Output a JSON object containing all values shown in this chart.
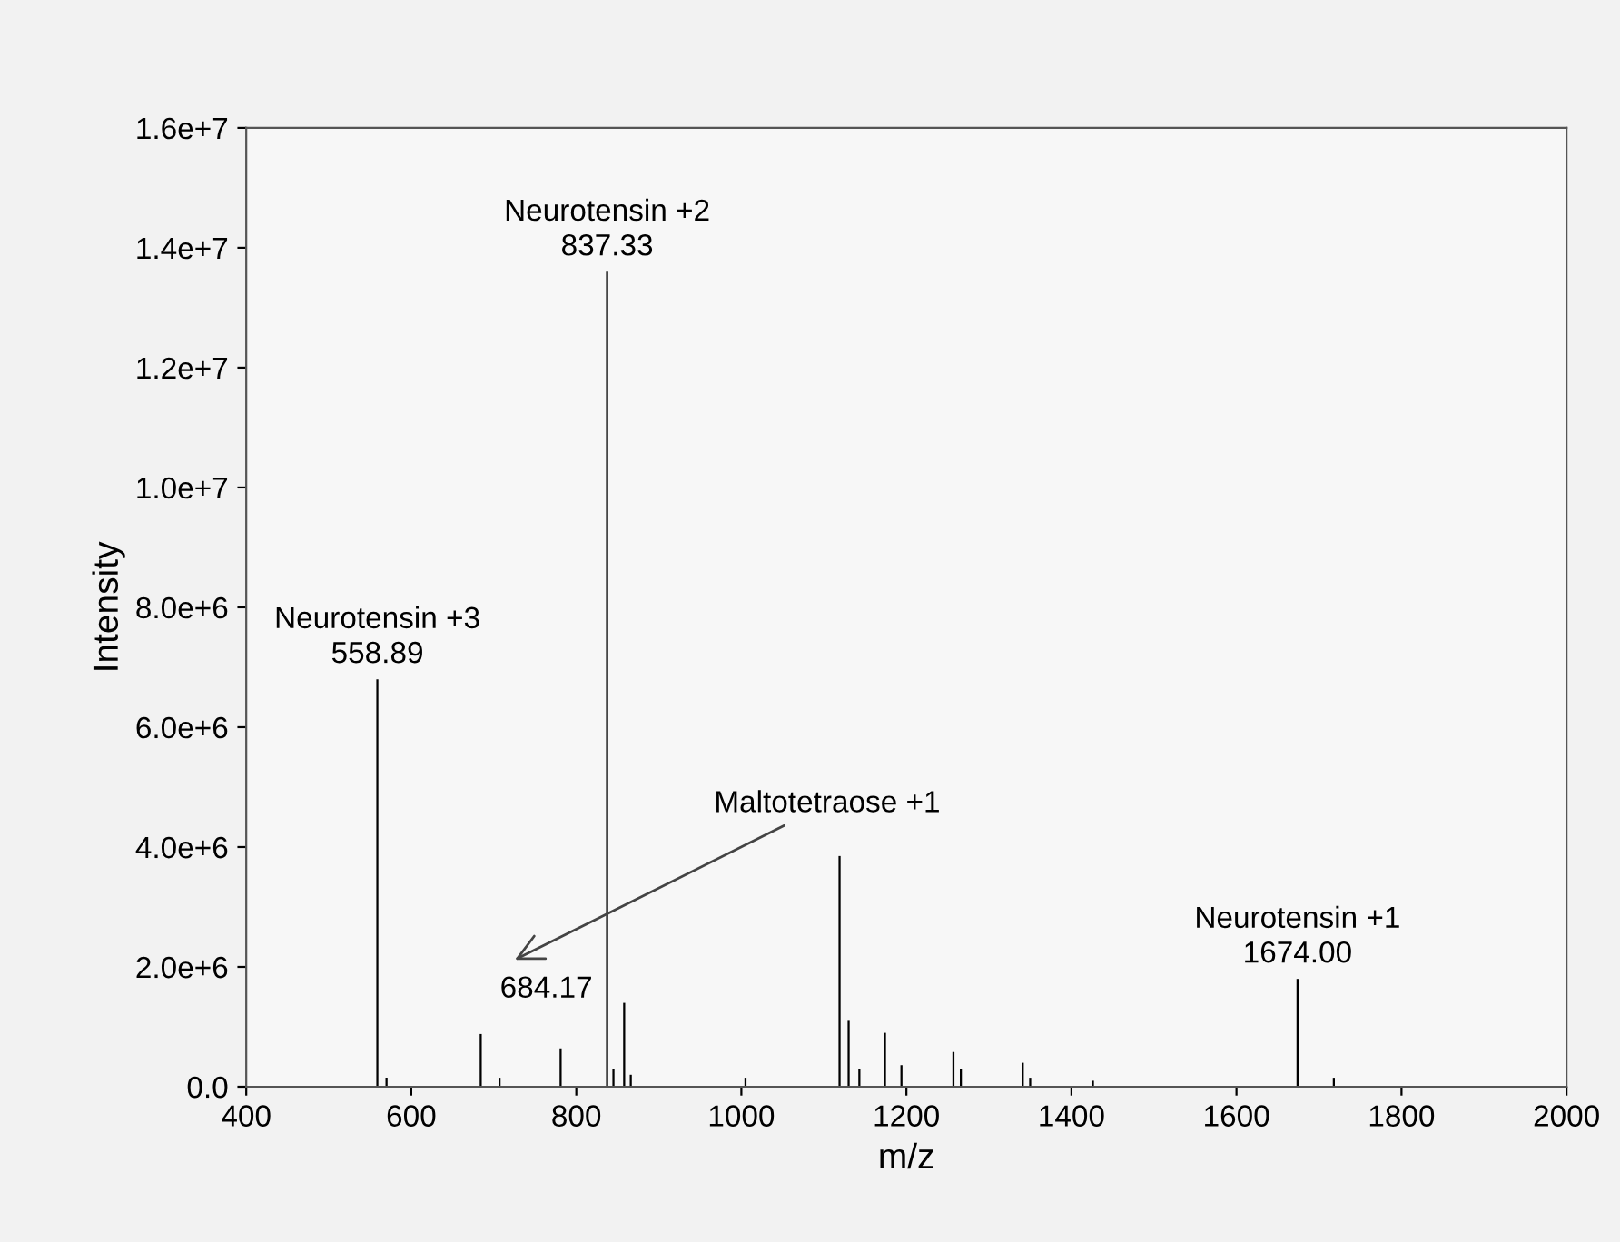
{
  "chart_data": {
    "type": "bar",
    "xlabel": "m/z",
    "ylabel": "Intensity",
    "x": [
      558.89,
      570,
      684.17,
      707,
      781,
      837.33,
      845,
      858,
      866,
      1005,
      1119,
      1130,
      1143,
      1174,
      1194,
      1257,
      1266,
      1341,
      1350,
      1426,
      1674.0,
      1718
    ],
    "values": [
      6800000,
      150000,
      880000,
      150000,
      640000,
      13600000,
      300000,
      1400000,
      200000,
      150000,
      3850000,
      1100000,
      300000,
      900000,
      360000,
      580000,
      300000,
      400000,
      150000,
      100000,
      1800000,
      150000
    ],
    "color": "#000000",
    "xlim": [
      400,
      2000
    ],
    "xticks": [
      400,
      600,
      800,
      1000,
      1200,
      1400,
      1600,
      1800,
      2000
    ],
    "ylim": [
      0,
      16000000
    ],
    "yticks": [
      {
        "value": 0,
        "label": "0.0"
      },
      {
        "value": 2000000,
        "label": "2.0e+6"
      },
      {
        "value": 4000000,
        "label": "4.0e+6"
      },
      {
        "value": 6000000,
        "label": "6.0e+6"
      },
      {
        "value": 8000000,
        "label": "8.0e+6"
      },
      {
        "value": 10000000,
        "label": "1.0e+7"
      },
      {
        "value": 12000000,
        "label": "1.2e+7"
      },
      {
        "value": 14000000,
        "label": "1.4e+7"
      },
      {
        "value": 16000000,
        "label": "1.6e+7"
      }
    ],
    "annotations": [
      {
        "text": "Neurotensin +3\n558.89",
        "x": 558.89,
        "y": 6800000
      },
      {
        "text": "Neurotensin +2\n837.33",
        "x": 837.33,
        "y": 13600000
      },
      {
        "text": "Neurotensin +1\n1674.00",
        "x": 1674.0,
        "y": 1800000
      },
      {
        "text": "684.17",
        "x": 684.17,
        "y": 880000
      },
      "Maltotetraose +1"
    ]
  }
}
